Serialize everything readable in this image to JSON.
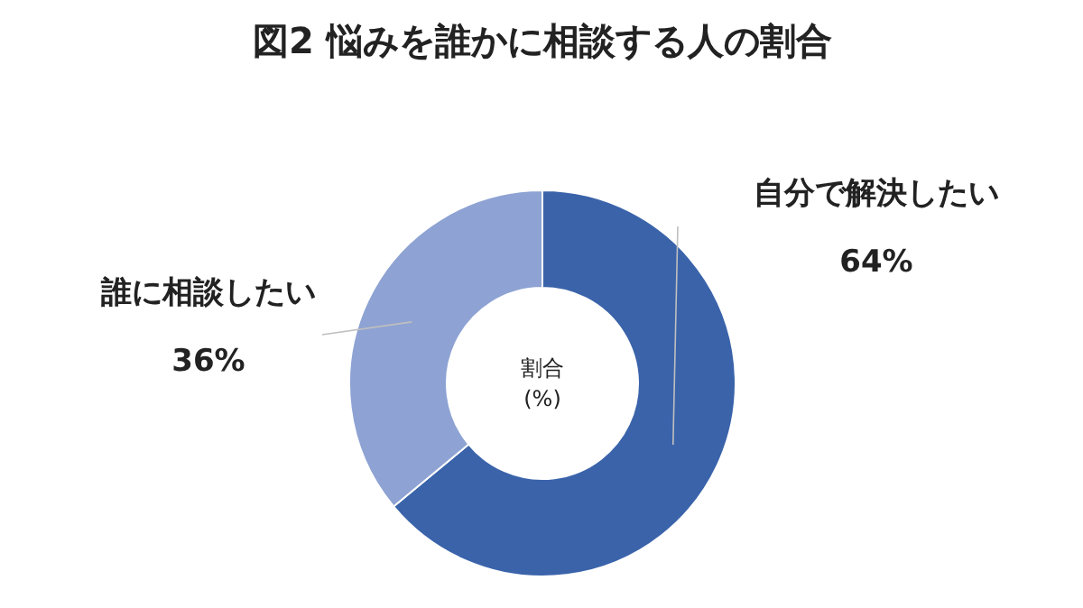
{
  "chart_data": {
    "type": "donut",
    "title": "図2 悩みを誰かに相談する人の割合",
    "categories": [
      "自分で解決したい",
      "誰に相談したい"
    ],
    "values": [
      64,
      36
    ],
    "colors": [
      "#3a63aa",
      "#8ea3d3"
    ],
    "annotations": [
      "割合\n(%)"
    ],
    "value_labels": [
      "64%",
      "36%"
    ]
  }
}
